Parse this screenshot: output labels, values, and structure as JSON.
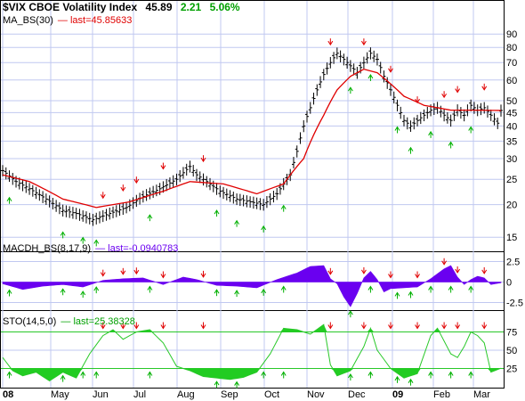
{
  "header": {
    "symbol": "$VIX CBOE Volatility Index",
    "last": "45.89",
    "change": "2.21",
    "change_pct": "5.06%"
  },
  "ma_label": "MA_BS(30)",
  "ma_value": "— last=45.85633",
  "macd_label": "MACDH_BS(8,17,9)",
  "macd_value": "— last=-0.0940783",
  "sto_label": "STO(14,5,0)",
  "sto_value": "— last=25.38328",
  "colors": {
    "price": "#000000",
    "ma": "#e00000",
    "macd": "#6a00f0",
    "sto_line": "#28c828",
    "sto_fill": "#22cc22",
    "grid": "#c0c8f0",
    "sell": "#e00000",
    "buy": "#00b000"
  },
  "chart_data": [
    {
      "type": "ohlc",
      "title": "$VIX CBOE Volatility Index",
      "x_ticks": [
        "08",
        "May",
        "Jun",
        "Jul",
        "Aug",
        "Sep",
        "Oct",
        "Nov",
        "Dec",
        "09",
        "Feb",
        "Mar"
      ],
      "y_scale": "log",
      "y_ticks": [
        15,
        20,
        25,
        30,
        35,
        40,
        45,
        50,
        60,
        70,
        80,
        90
      ],
      "ylim": [
        14,
        96
      ],
      "price_anchors": [
        [
          0,
          27
        ],
        [
          4,
          24.5
        ],
        [
          8,
          23
        ],
        [
          13,
          21
        ],
        [
          18,
          19
        ],
        [
          22,
          18.5
        ],
        [
          27,
          17.5
        ],
        [
          32,
          18.5
        ],
        [
          37,
          19.5
        ],
        [
          42,
          21.5
        ],
        [
          47,
          23
        ],
        [
          52,
          25
        ],
        [
          56,
          28
        ],
        [
          58,
          26
        ],
        [
          62,
          24
        ],
        [
          65,
          22.5
        ],
        [
          70,
          21
        ],
        [
          74,
          20.5
        ],
        [
          78,
          20
        ],
        [
          82,
          22
        ],
        [
          86,
          26
        ],
        [
          88,
          32
        ],
        [
          90,
          40
        ],
        [
          92,
          47
        ],
        [
          94,
          55
        ],
        [
          96,
          63
        ],
        [
          98,
          70
        ],
        [
          100,
          76
        ],
        [
          102,
          72
        ],
        [
          104,
          68
        ],
        [
          106,
          64
        ],
        [
          108,
          70
        ],
        [
          110,
          76
        ],
        [
          112,
          72
        ],
        [
          114,
          62
        ],
        [
          116,
          55
        ],
        [
          118,
          48
        ],
        [
          120,
          42
        ],
        [
          122,
          40
        ],
        [
          124,
          42
        ],
        [
          126,
          44
        ],
        [
          128,
          46
        ],
        [
          130,
          47
        ],
        [
          132,
          44
        ],
        [
          134,
          42
        ],
        [
          136,
          46
        ],
        [
          138,
          44
        ],
        [
          140,
          48
        ],
        [
          142,
          46
        ],
        [
          144,
          47
        ],
        [
          146,
          44
        ],
        [
          148,
          41
        ],
        [
          149,
          45.89
        ]
      ],
      "ma_anchors": [
        [
          0,
          26
        ],
        [
          8,
          24.5
        ],
        [
          18,
          21
        ],
        [
          28,
          19.5
        ],
        [
          38,
          20.5
        ],
        [
          48,
          22.5
        ],
        [
          56,
          24.5
        ],
        [
          66,
          24
        ],
        [
          76,
          22
        ],
        [
          84,
          24
        ],
        [
          90,
          30
        ],
        [
          96,
          44
        ],
        [
          100,
          55
        ],
        [
          104,
          62
        ],
        [
          108,
          66
        ],
        [
          112,
          64
        ],
        [
          116,
          58
        ],
        [
          120,
          52
        ],
        [
          126,
          48
        ],
        [
          134,
          46
        ],
        [
          142,
          46
        ],
        [
          149,
          45.86
        ]
      ],
      "ma_last": 45.85633
    },
    {
      "type": "area",
      "title": "MACDH_BS(8,17,9)",
      "y_ticks": [
        2.5,
        0,
        -2.5
      ],
      "ylim": [
        -3.2,
        3.2
      ],
      "anchors": [
        [
          0,
          -0.2
        ],
        [
          6,
          -0.9
        ],
        [
          12,
          -0.5
        ],
        [
          18,
          -0.3
        ],
        [
          24,
          -0.6
        ],
        [
          30,
          0.2
        ],
        [
          36,
          0.4
        ],
        [
          42,
          0.5
        ],
        [
          48,
          -0.3
        ],
        [
          54,
          0.6
        ],
        [
          58,
          0.3
        ],
        [
          64,
          -0.4
        ],
        [
          70,
          -0.5
        ],
        [
          76,
          -0.7
        ],
        [
          82,
          0.3
        ],
        [
          88,
          1.1
        ],
        [
          92,
          1.9
        ],
        [
          96,
          2.0
        ],
        [
          98,
          0.4
        ],
        [
          100,
          -0.2
        ],
        [
          102,
          -1.8
        ],
        [
          104,
          -3.0
        ],
        [
          106,
          -1.4
        ],
        [
          108,
          0.5
        ],
        [
          110,
          1.3
        ],
        [
          112,
          0.3
        ],
        [
          114,
          -1.2
        ],
        [
          116,
          -0.8
        ],
        [
          120,
          -0.7
        ],
        [
          124,
          -0.6
        ],
        [
          128,
          0.4
        ],
        [
          132,
          1.6
        ],
        [
          134,
          2.0
        ],
        [
          136,
          0.6
        ],
        [
          138,
          -0.3
        ],
        [
          140,
          0.3
        ],
        [
          142,
          0.7
        ],
        [
          144,
          0.5
        ],
        [
          146,
          -0.3
        ],
        [
          149,
          -0.09
        ]
      ],
      "last": -0.0940783
    },
    {
      "type": "line",
      "title": "STO(14,5,0)",
      "y_ticks": [
        75,
        50,
        25
      ],
      "ylim": [
        0,
        100
      ],
      "levels": [
        75,
        25
      ],
      "anchors": [
        [
          0,
          40
        ],
        [
          3,
          22
        ],
        [
          6,
          15
        ],
        [
          10,
          20
        ],
        [
          14,
          8
        ],
        [
          18,
          20
        ],
        [
          22,
          12
        ],
        [
          26,
          45
        ],
        [
          30,
          70
        ],
        [
          33,
          78
        ],
        [
          36,
          65
        ],
        [
          40,
          75
        ],
        [
          44,
          78
        ],
        [
          48,
          60
        ],
        [
          52,
          28
        ],
        [
          56,
          22
        ],
        [
          60,
          14
        ],
        [
          64,
          12
        ],
        [
          68,
          10
        ],
        [
          72,
          13
        ],
        [
          76,
          20
        ],
        [
          80,
          45
        ],
        [
          84,
          80
        ],
        [
          88,
          78
        ],
        [
          92,
          72
        ],
        [
          96,
          85
        ],
        [
          98,
          30
        ],
        [
          100,
          15
        ],
        [
          104,
          22
        ],
        [
          108,
          55
        ],
        [
          110,
          80
        ],
        [
          112,
          50
        ],
        [
          116,
          25
        ],
        [
          120,
          12
        ],
        [
          124,
          18
        ],
        [
          128,
          70
        ],
        [
          130,
          80
        ],
        [
          134,
          45
        ],
        [
          136,
          40
        ],
        [
          138,
          55
        ],
        [
          140,
          75
        ],
        [
          142,
          70
        ],
        [
          144,
          60
        ],
        [
          146,
          20
        ],
        [
          149,
          25.38
        ]
      ],
      "last": 25.38328
    }
  ]
}
